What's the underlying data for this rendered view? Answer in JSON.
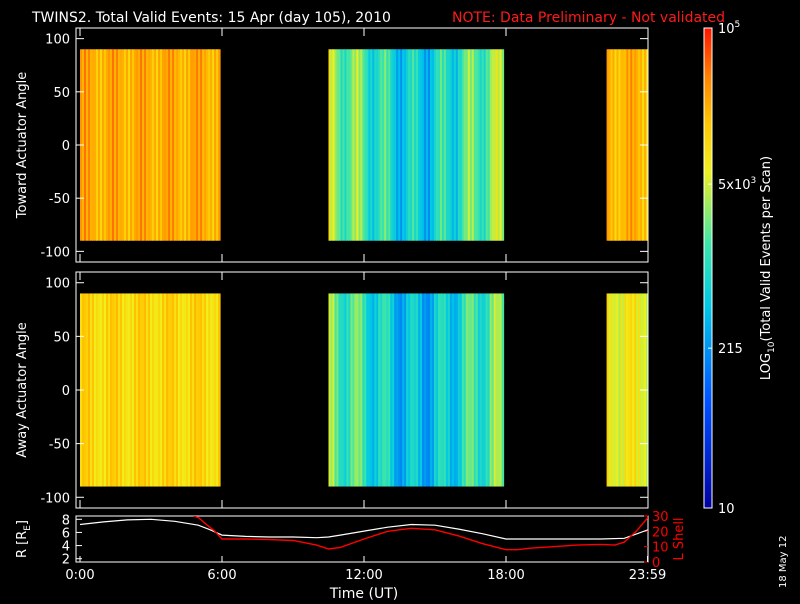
{
  "header": {
    "title": "TWINS2. Total Valid Events: 15 Apr (day 105), 2010",
    "note": "NOTE: Data Preliminary - Not validated"
  },
  "footer": {
    "date_stamp": "18 May 12"
  },
  "colors": {
    "background": "#000000",
    "axes": "#ffffff",
    "note": "#ff1a1a",
    "radius_line": "#ffffff",
    "lshell_line": "#ff0000"
  },
  "chart_data": [
    {
      "type": "heatmap",
      "name": "toward",
      "ylabel": "Toward Actuator Angle",
      "yticks": [
        100,
        50,
        0,
        -50,
        -100
      ],
      "ylim": [
        -110,
        110
      ],
      "xlim": [
        0,
        24
      ],
      "data_y_range": [
        -90,
        90
      ],
      "blocks": [
        {
          "start_hr": 0.0,
          "end_hr": 5.92,
          "mean_log": 4.35
        },
        {
          "start_hr": 10.5,
          "end_hr": 17.9,
          "mean_log": 3.1
        },
        {
          "start_hr": 22.25,
          "end_hr": 24.0,
          "mean_log": 4.3
        }
      ]
    },
    {
      "type": "heatmap",
      "name": "away",
      "ylabel": "Away Actuator Angle",
      "yticks": [
        100,
        50,
        0,
        -50,
        -100
      ],
      "ylim": [
        -110,
        110
      ],
      "xlim": [
        0,
        24
      ],
      "data_y_range": [
        -90,
        90
      ],
      "blocks": [
        {
          "start_hr": 0.0,
          "end_hr": 5.92,
          "mean_log": 4.05
        },
        {
          "start_hr": 10.5,
          "end_hr": 17.9,
          "mean_log": 2.95
        },
        {
          "start_hr": 22.25,
          "end_hr": 24.0,
          "mean_log": 3.85
        }
      ]
    },
    {
      "type": "colorbar",
      "label": "LOG10(Total Valid Events per Scan)",
      "label_main": "LOG",
      "label_sub": "10",
      "label_rest": "(Total Valid Events per Scan)",
      "log_range": [
        1,
        5
      ],
      "ticks": [
        {
          "log": 5,
          "text": "10",
          "sup": "5"
        },
        {
          "log": 3.699,
          "text": "5x10",
          "sup": "3"
        },
        {
          "log": 2.332,
          "text": "215",
          "sup": ""
        },
        {
          "log": 1,
          "text": "10",
          "sup": ""
        }
      ]
    },
    {
      "type": "line",
      "name": "orbit",
      "ylabel_left": "R [RE]",
      "ylabel_left_main": "R [R",
      "ylabel_left_sub": "E",
      "ylabel_left_end": "]",
      "ylabel_right": "L Shell",
      "xlabel": "Time (UT)",
      "xlim": [
        0,
        24
      ],
      "xtick_labels": [
        {
          "hr": 0,
          "text": "0:00"
        },
        {
          "hr": 6,
          "text": "6:00"
        },
        {
          "hr": 12,
          "text": "12:00"
        },
        {
          "hr": 18,
          "text": "18:00"
        },
        {
          "hr": 23.98,
          "text": "23:59"
        }
      ],
      "yticks_left": [
        8,
        6,
        4,
        2
      ],
      "ylim_left": [
        1.5,
        8.5
      ],
      "yticks_right": [
        30,
        20,
        10,
        0
      ],
      "ylim_right": [
        0,
        30
      ],
      "series": [
        {
          "name": "R",
          "x": [
            0,
            1,
            2,
            3,
            4,
            5,
            5.5,
            6,
            7,
            8,
            9,
            10,
            10.5,
            11,
            12,
            13,
            14,
            15,
            16,
            17,
            18,
            19,
            20,
            21,
            22,
            23,
            24
          ],
          "values": [
            7.2,
            7.6,
            7.9,
            8.0,
            7.7,
            7.1,
            6.4,
            5.6,
            5.4,
            5.3,
            5.3,
            5.2,
            5.3,
            5.6,
            6.2,
            6.8,
            7.2,
            7.1,
            6.5,
            5.8,
            5.0,
            5.0,
            5.0,
            5.0,
            5.0,
            5.1,
            6.4
          ]
        },
        {
          "name": "L Shell",
          "x": [
            4.8,
            5.0,
            5.3,
            5.7,
            6.0,
            7,
            8,
            9,
            10,
            10.5,
            11,
            12,
            13,
            14,
            15,
            16,
            17,
            18,
            18.5,
            19,
            20,
            21,
            22,
            22.6,
            23.0,
            23.5,
            24
          ],
          "values": [
            30,
            29,
            25,
            20,
            15,
            15,
            14.6,
            14,
            11,
            8.5,
            9.5,
            15,
            20,
            22,
            21,
            17,
            12,
            8,
            8,
            9,
            10,
            11,
            11.5,
            11,
            13,
            20,
            29
          ]
        }
      ]
    }
  ]
}
